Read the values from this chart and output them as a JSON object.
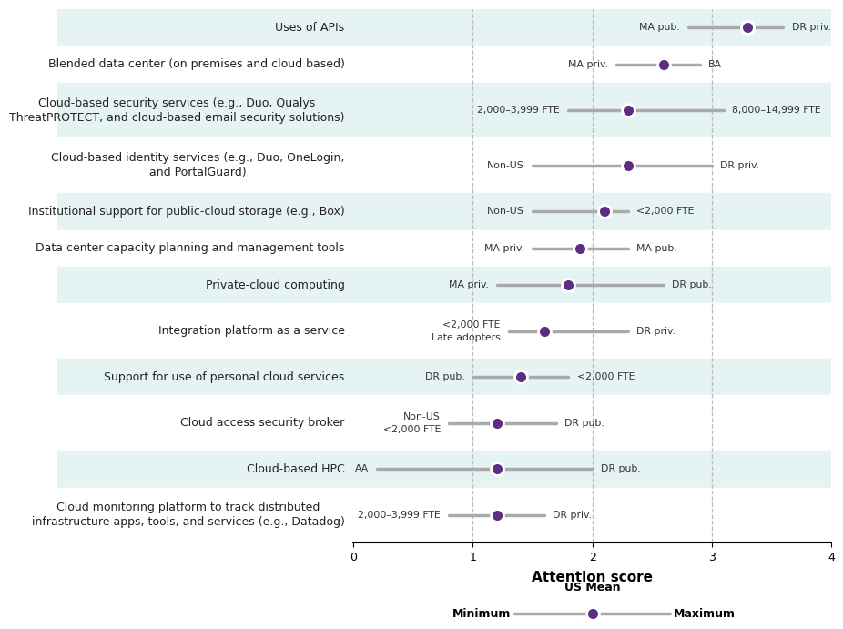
{
  "items": [
    {
      "label": "Uses of APIs",
      "mean": 3.3,
      "min": 2.8,
      "max": 3.6,
      "min_label": "MA pub.",
      "max_label": "DR priv.",
      "shaded": true,
      "multiline": false
    },
    {
      "label": "Blended data center (on premises and cloud based)",
      "mean": 2.6,
      "min": 2.2,
      "max": 2.9,
      "min_label": "MA priv.",
      "max_label": "BA",
      "shaded": false,
      "multiline": false
    },
    {
      "label": "Cloud-based security services (e.g., Duo, Qualys\nThreatPROTECT, and cloud-based email security solutions)",
      "mean": 2.3,
      "min": 1.8,
      "max": 3.1,
      "min_label": "2,000–3,999 FTE",
      "max_label": "8,000–14,999 FTE",
      "shaded": true,
      "multiline": true
    },
    {
      "label": "Cloud-based identity services (e.g., Duo, OneLogin,\nand PortalGuard)",
      "mean": 2.3,
      "min": 1.5,
      "max": 3.0,
      "min_label": "Non-US",
      "max_label": "DR priv.",
      "shaded": false,
      "multiline": true
    },
    {
      "label": "Institutional support for public-cloud storage (e.g., Box)",
      "mean": 2.1,
      "min": 1.5,
      "max": 2.3,
      "min_label": "Non-US",
      "max_label": "<2,000 FTE",
      "shaded": true,
      "multiline": false
    },
    {
      "label": "Data center capacity planning and management tools",
      "mean": 1.9,
      "min": 1.5,
      "max": 2.3,
      "min_label": "MA priv.",
      "max_label": "MA pub.",
      "shaded": false,
      "multiline": false
    },
    {
      "label": "Private-cloud computing",
      "mean": 1.8,
      "min": 1.2,
      "max": 2.6,
      "min_label": "MA priv.",
      "max_label": "DR pub.",
      "shaded": true,
      "multiline": false
    },
    {
      "label": "Integration platform as a service",
      "mean": 1.6,
      "min": 1.3,
      "max": 2.3,
      "min_label": "<2,000 FTE\nLate adopters",
      "max_label": "DR priv.",
      "shaded": false,
      "multiline": false
    },
    {
      "label": "Support for use of personal cloud services",
      "mean": 1.4,
      "min": 1.0,
      "max": 1.8,
      "min_label": "DR pub.",
      "max_label": "<2,000 FTE",
      "shaded": true,
      "multiline": false
    },
    {
      "label": "Cloud access security broker",
      "mean": 1.2,
      "min": 0.8,
      "max": 1.7,
      "min_label": "Non-US\n<2,000 FTE",
      "max_label": "DR pub.",
      "shaded": false,
      "multiline": false
    },
    {
      "label": "Cloud-based HPC",
      "mean": 1.2,
      "min": 0.2,
      "max": 2.0,
      "min_label": "AA",
      "max_label": "DR pub.",
      "shaded": true,
      "multiline": false
    },
    {
      "label": "Cloud monitoring platform to track distributed\ninfrastructure apps, tools, and services (e.g., Datadog)",
      "mean": 1.2,
      "min": 0.8,
      "max": 1.6,
      "min_label": "2,000–3,999 FTE",
      "max_label": "DR priv.",
      "shaded": false,
      "multiline": true
    }
  ],
  "xlabel": "Attention score",
  "xlim": [
    0,
    4
  ],
  "xticks": [
    0,
    1,
    2,
    3,
    4
  ],
  "line_color": "#aaaaaa",
  "dot_color": "#5c2d82",
  "dot_edge_color": "#ffffff",
  "shaded_color": "#e6f3f3",
  "unshaded_color": "#ffffff",
  "label_fontsize": 9.0,
  "annot_fontsize": 7.8,
  "tick_fontsize": 9,
  "axis_label_fontsize": 11,
  "legend_mean_label": "US Mean",
  "legend_min_label": "Minimum",
  "legend_max_label": "Maximum"
}
